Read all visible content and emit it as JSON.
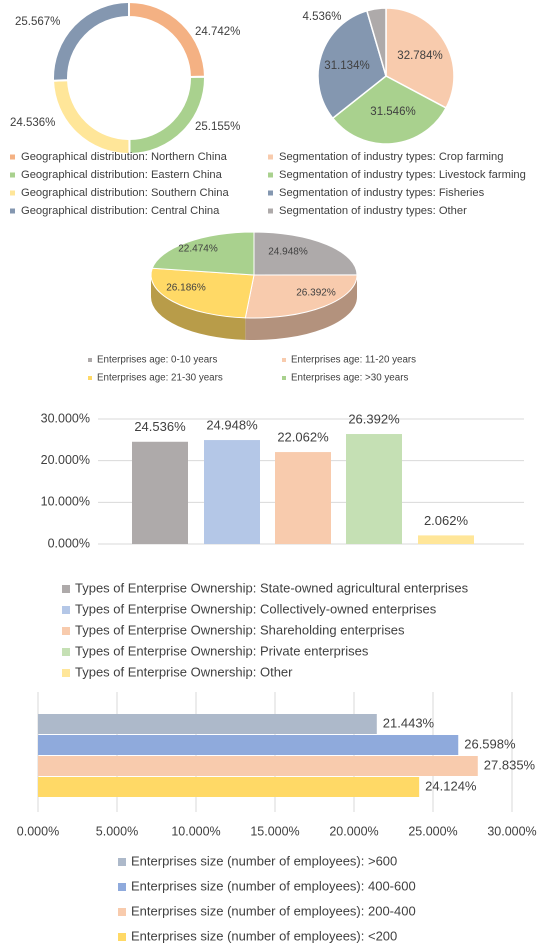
{
  "chart_data": [
    {
      "type": "pie",
      "variant": "donut",
      "categories": [
        "Geographical distribution: Northern China",
        "Geographical distribution: Eastern China",
        "Geographical distribution: Southern China",
        "Geographical distribution: Central China"
      ],
      "values": [
        24.742,
        25.155,
        24.536,
        25.567
      ],
      "labels": [
        "24.742%",
        "25.155%",
        "24.536%",
        "25.567%"
      ],
      "colors": [
        "#f4b183",
        "#a9d18e",
        "#ffe699",
        "#8497b0"
      ],
      "legend_position": "bottom"
    },
    {
      "type": "pie",
      "categories": [
        "Segmentation of industry types: Crop farming",
        "Segmentation of industry types: Livestock farming",
        "Segmentation of industry types: Fisheries",
        "Segmentation of industry types: Other"
      ],
      "values": [
        32.784,
        31.546,
        31.134,
        4.536
      ],
      "labels": [
        "32.784%",
        "31.546%",
        "31.134%",
        "4.536%"
      ],
      "colors": [
        "#f8cbad",
        "#a9d18e",
        "#8497b0",
        "#aeaaaa"
      ],
      "legend_position": "bottom"
    },
    {
      "type": "pie",
      "variant": "3d",
      "categories": [
        "Enterprises age: 0-10 years",
        "Enterprises age: 11-20 years",
        "Enterprises age: 21-30 years",
        "Enterprises age: >30 years"
      ],
      "values": [
        24.948,
        26.392,
        26.186,
        22.474
      ],
      "labels": [
        "24.948%",
        "26.392%",
        "26.186%",
        "22.474%"
      ],
      "colors": [
        "#aeaaaa",
        "#f8cbad",
        "#ffd966",
        "#a9d18e"
      ],
      "legend_position": "bottom"
    },
    {
      "type": "bar",
      "categories": [
        "Types of Enterprise Ownership: State-owned agricultural enterprises",
        "Types of Enterprise Ownership: Collectively-owned enterprises",
        "Types of Enterprise Ownership: Shareholding enterprises",
        "Types of Enterprise Ownership: Private enterprises",
        "Types of Enterprise Ownership: Other"
      ],
      "values": [
        24.536,
        24.948,
        22.062,
        26.392,
        2.062
      ],
      "labels": [
        "24.536%",
        "24.948%",
        "22.062%",
        "26.392%",
        "2.062%"
      ],
      "colors": [
        "#aeaaaa",
        "#b4c7e7",
        "#f8cbad",
        "#c5e0b4",
        "#ffe699"
      ],
      "ylim": [
        0,
        30
      ],
      "yticks": [
        "0.000%",
        "10.000%",
        "20.000%",
        "30.000%"
      ],
      "grid": true,
      "legend_position": "bottom"
    },
    {
      "type": "bar",
      "orientation": "horizontal",
      "categories": [
        "Enterprises size (number of employees): >600",
        "Enterprises size (number of employees): 400-600",
        "Enterprises size (number of employees): 200-400",
        "Enterprises size (number of employees): <200"
      ],
      "values": [
        21.443,
        26.598,
        27.835,
        24.124
      ],
      "labels": [
        "21.443%",
        "26.598%",
        "27.835%",
        "24.124%"
      ],
      "colors": [
        "#adb9ca",
        "#8faadc",
        "#f8cbad",
        "#ffd966"
      ],
      "xlim": [
        0,
        30
      ],
      "xticks": [
        "0.000%",
        "5.000%",
        "10.000%",
        "15.000%",
        "20.000%",
        "25.000%",
        "30.000%"
      ],
      "grid": true,
      "legend_position": "bottom"
    }
  ]
}
